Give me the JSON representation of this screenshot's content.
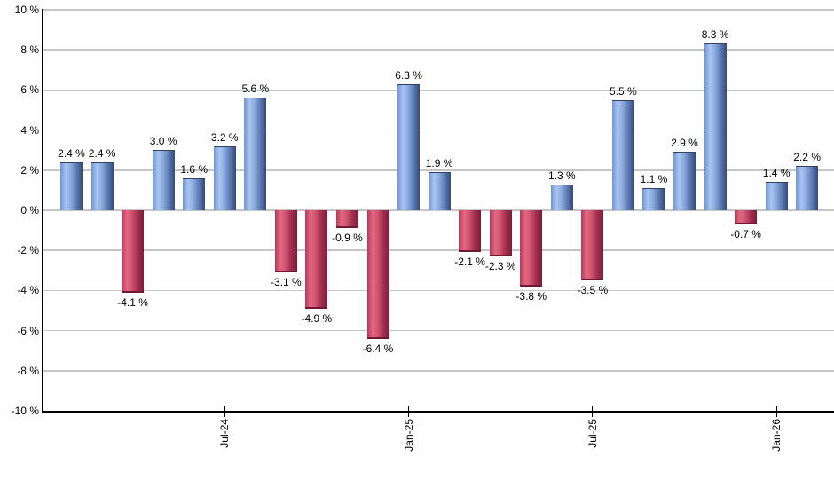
{
  "chart_data": {
    "type": "bar",
    "title": "",
    "xlabel": "",
    "ylabel": "",
    "ylim": [
      -10,
      10
    ],
    "grid": true,
    "y_axis": {
      "tick_labels": [
        "10 %",
        "8 %",
        "6 %",
        "4 %",
        "2 %",
        "0 %",
        "-2 %",
        "-4 %",
        "-6 %",
        "-8 %",
        "-10 %"
      ],
      "tick_values": [
        10,
        8,
        6,
        4,
        2,
        0,
        -2,
        -4,
        -6,
        -8,
        -10
      ]
    },
    "x_axis": {
      "ticks": [
        {
          "label": "Jul-24",
          "bar_index": 5
        },
        {
          "label": "Jan-25",
          "bar_index": 11
        },
        {
          "label": "Jul-25",
          "bar_index": 17
        },
        {
          "label": "Jan-26",
          "bar_index": 23
        }
      ]
    },
    "bars": [
      {
        "value": 2.4,
        "label": "2.4 %"
      },
      {
        "value": 2.4,
        "label": "2.4 %"
      },
      {
        "value": -4.1,
        "label": "-4.1 %"
      },
      {
        "value": 3.0,
        "label": "3.0 %"
      },
      {
        "value": 1.6,
        "label": "1.6 %"
      },
      {
        "value": 3.2,
        "label": "3.2 %"
      },
      {
        "value": 5.6,
        "label": "5.6 %"
      },
      {
        "value": -3.1,
        "label": "-3.1 %"
      },
      {
        "value": -4.9,
        "label": "-4.9 %"
      },
      {
        "value": -0.9,
        "label": "-0.9 %"
      },
      {
        "value": -6.4,
        "label": "-6.4 %"
      },
      {
        "value": 6.3,
        "label": "6.3 %"
      },
      {
        "value": 1.9,
        "label": "1.9 %"
      },
      {
        "value": -2.1,
        "label": "-2.1 %"
      },
      {
        "value": -2.3,
        "label": "-2.3 %"
      },
      {
        "value": -3.8,
        "label": "-3.8 %"
      },
      {
        "value": 1.3,
        "label": "1.3 %"
      },
      {
        "value": -3.5,
        "label": "-3.5 %"
      },
      {
        "value": 5.5,
        "label": "5.5 %"
      },
      {
        "value": 1.1,
        "label": "1.1 %"
      },
      {
        "value": 2.9,
        "label": "2.9 %"
      },
      {
        "value": 8.3,
        "label": "8.3 %"
      },
      {
        "value": -0.7,
        "label": "-0.7 %"
      },
      {
        "value": 1.4,
        "label": "1.4 %"
      },
      {
        "value": 2.2,
        "label": "2.2 %"
      }
    ],
    "colors": {
      "positive_stops": [
        "#7094d3",
        "#a9c4f1",
        "#8fade0",
        "#5c7cb4",
        "#35497c"
      ],
      "negative_stops": [
        "#b13c5c",
        "#e4677f",
        "#d05672",
        "#a42e50",
        "#7c1c38"
      ],
      "positive_cap": "#2e4068",
      "negative_cap": "#701831",
      "gridline": "#c5c5c5",
      "axis": "#000000",
      "text": "#000000",
      "background": "#ffffff"
    }
  }
}
